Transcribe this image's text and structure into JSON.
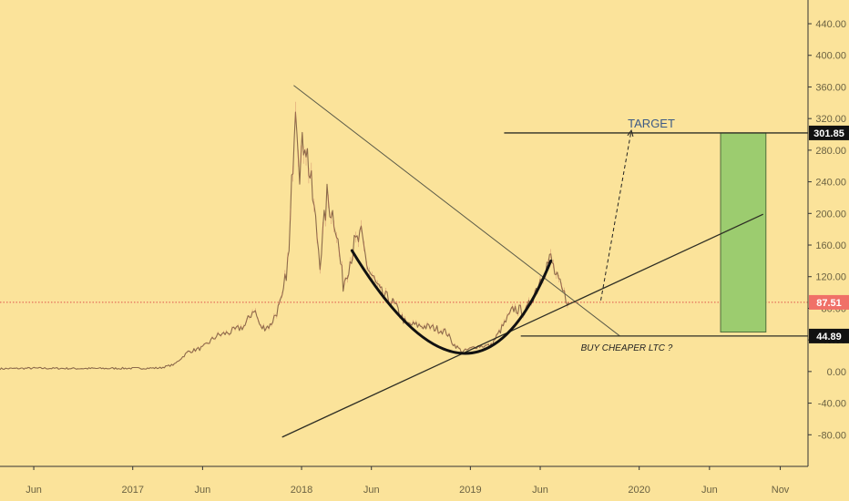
{
  "chart_data": {
    "type": "line",
    "title": "",
    "xlabel": "",
    "ylabel": "",
    "grid": false,
    "y_range": [
      -120,
      470
    ],
    "x_range": [
      "2016-03-20",
      "2020-12-31"
    ],
    "y_ticks": [
      "440.00",
      "400.00",
      "360.00",
      "320.00",
      "280.00",
      "240.00",
      "200.00",
      "160.00",
      "120.00",
      "80.00",
      "40.00",
      "0.00",
      "-40.00",
      "-80.00"
    ],
    "x_ticks": [
      {
        "label": "Jun",
        "date": "2016-06-01"
      },
      {
        "label": "2017",
        "date": "2017-01-01"
      },
      {
        "label": "Jun",
        "date": "2017-06-01"
      },
      {
        "label": "2018",
        "date": "2018-01-01"
      },
      {
        "label": "Jun",
        "date": "2018-06-01"
      },
      {
        "label": "2019",
        "date": "2019-01-01"
      },
      {
        "label": "Jun",
        "date": "2019-06-01"
      },
      {
        "label": "2020",
        "date": "2020-01-01"
      },
      {
        "label": "Jun",
        "date": "2020-06-01"
      },
      {
        "label": "Nov",
        "date": "2020-11-01"
      }
    ],
    "series": [
      {
        "color": "#8b6a4a",
        "points": [
          [
            "2016-03-20",
            3.5
          ],
          [
            "2016-06-01",
            4.2
          ],
          [
            "2016-09-01",
            3.8
          ],
          [
            "2016-12-01",
            4.0
          ],
          [
            "2017-01-15",
            4.1
          ],
          [
            "2017-03-01",
            4.5
          ],
          [
            "2017-04-01",
            9
          ],
          [
            "2017-05-01",
            25
          ],
          [
            "2017-06-01",
            30
          ],
          [
            "2017-07-01",
            45
          ],
          [
            "2017-08-01",
            50
          ],
          [
            "2017-09-01",
            58
          ],
          [
            "2017-09-20",
            80
          ],
          [
            "2017-10-05",
            55
          ],
          [
            "2017-10-25",
            58
          ],
          [
            "2017-11-20",
            90
          ],
          [
            "2017-12-05",
            150
          ],
          [
            "2017-12-19",
            355
          ],
          [
            "2017-12-28",
            260
          ],
          [
            "2018-01-08",
            300
          ],
          [
            "2018-01-25",
            220
          ],
          [
            "2018-02-10",
            140
          ],
          [
            "2018-02-25",
            220
          ],
          [
            "2018-03-15",
            190
          ],
          [
            "2018-04-01",
            110
          ],
          [
            "2018-04-25",
            160
          ],
          [
            "2018-05-10",
            170
          ],
          [
            "2018-05-25",
            130
          ],
          [
            "2018-06-20",
            100
          ],
          [
            "2018-07-20",
            85
          ],
          [
            "2018-08-15",
            60
          ],
          [
            "2018-09-15",
            58
          ],
          [
            "2018-10-15",
            55
          ],
          [
            "2018-11-10",
            50
          ],
          [
            "2018-11-25",
            35
          ],
          [
            "2018-12-15",
            25
          ],
          [
            "2019-01-15",
            32
          ],
          [
            "2019-02-15",
            33
          ],
          [
            "2019-03-10",
            55
          ],
          [
            "2019-04-05",
            80
          ],
          [
            "2019-05-01",
            75
          ],
          [
            "2019-05-20",
            100
          ],
          [
            "2019-06-10",
            130
          ],
          [
            "2019-06-24",
            143
          ],
          [
            "2019-07-05",
            120
          ],
          [
            "2019-07-20",
            100
          ],
          [
            "2019-08-02",
            87.51
          ]
        ]
      }
    ],
    "annotations": {
      "target_label": "TARGET",
      "target_price": "301.85",
      "buy_label": "BUY CHEAPER LTC ?",
      "buy_price": "44.89",
      "current_price": "87.51",
      "target_line": {
        "from": [
          "2019-03-15",
          301.85
        ],
        "to": [
          "2020-12-31",
          301.85
        ]
      },
      "buy_line": {
        "from": [
          "2019-04-20",
          44.89
        ],
        "to": [
          "2020-12-31",
          44.89
        ]
      },
      "current_line": {
        "y": 87.51
      },
      "descending_trendline": {
        "from": [
          "2017-12-15",
          362
        ],
        "to": [
          "2019-11-20",
          45
        ]
      },
      "ascending_trendline": {
        "from": [
          "2017-11-20",
          -83
        ],
        "to": [
          "2020-09-25",
          199
        ]
      },
      "cup_curve": {
        "start": [
          "2018-04-20",
          153
        ],
        "bottom": [
          "2018-12-15",
          23
        ],
        "end": [
          "2019-06-24",
          140
        ]
      },
      "target_arrow": {
        "from": [
          "2019-10-10",
          90
        ],
        "to": [
          "2019-12-15",
          305
        ]
      },
      "target_box": {
        "from_date": "2020-06-25",
        "to_date": "2020-10-01",
        "top": 301.85,
        "bottom": 50
      }
    }
  }
}
